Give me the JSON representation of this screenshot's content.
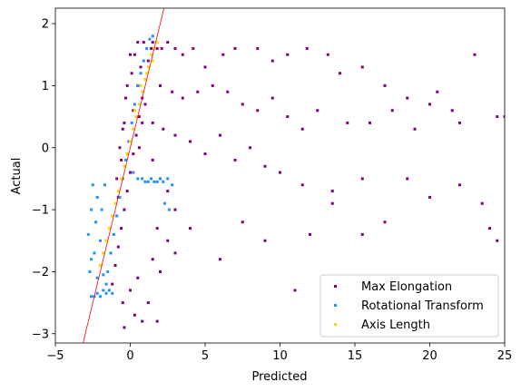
{
  "chart_data": {
    "type": "scatter",
    "xlabel": "Predicted",
    "ylabel": "Actual",
    "xlim": [
      -5,
      25
    ],
    "ylim": [
      -3.15,
      2.25
    ],
    "xticks": [
      -5,
      0,
      5,
      10,
      15,
      20,
      25
    ],
    "yticks": [
      -3,
      -2,
      -1,
      0,
      1,
      2
    ],
    "grid": false,
    "legend_position": "lower right",
    "reference_line": {
      "label": "",
      "slope": 1.0,
      "intercept": 0.0,
      "color": "#ff0000"
    },
    "series": [
      {
        "name": "Max Elongation",
        "color": "#800080",
        "points": [
          [
            -1.2,
            -2.2
          ],
          [
            -1.0,
            -1.9
          ],
          [
            -0.8,
            -1.6
          ],
          [
            -0.6,
            -1.3
          ],
          [
            -0.4,
            -1.0
          ],
          [
            -0.2,
            -0.7
          ],
          [
            0.0,
            -0.4
          ],
          [
            0.2,
            -0.1
          ],
          [
            0.4,
            0.2
          ],
          [
            0.6,
            0.5
          ],
          [
            0.8,
            0.8
          ],
          [
            1.0,
            1.1
          ],
          [
            1.2,
            1.4
          ],
          [
            1.4,
            1.6
          ],
          [
            -0.5,
            0.3
          ],
          [
            -0.3,
            0.8
          ],
          [
            0.1,
            1.2
          ],
          [
            0.3,
            1.5
          ],
          [
            0.5,
            1.7
          ],
          [
            0.9,
            1.7
          ],
          [
            -0.9,
            -0.5
          ],
          [
            -0.7,
            0.0
          ],
          [
            0.2,
            0.6
          ],
          [
            0.5,
            1.0
          ],
          [
            0.7,
            1.3
          ],
          [
            1.5,
            1.7
          ],
          [
            1.8,
            1.6
          ],
          [
            2.1,
            1.6
          ],
          [
            2.5,
            1.7
          ],
          [
            3.0,
            1.6
          ],
          [
            3.5,
            1.5
          ],
          [
            4.2,
            1.6
          ],
          [
            5.0,
            1.3
          ],
          [
            6.2,
            1.5
          ],
          [
            7.0,
            1.6
          ],
          [
            8.5,
            1.6
          ],
          [
            9.5,
            1.4
          ],
          [
            10.5,
            1.5
          ],
          [
            11.8,
            1.6
          ],
          [
            13.2,
            1.5
          ],
          [
            14.0,
            1.2
          ],
          [
            15.5,
            1.3
          ],
          [
            17.0,
            1.0
          ],
          [
            18.5,
            0.8
          ],
          [
            20.0,
            0.7
          ],
          [
            21.5,
            0.6
          ],
          [
            23.0,
            1.5
          ],
          [
            24.5,
            0.5
          ],
          [
            25.0,
            0.5
          ],
          [
            2.0,
            1.0
          ],
          [
            2.8,
            0.9
          ],
          [
            3.5,
            0.8
          ],
          [
            4.5,
            0.9
          ],
          [
            5.5,
            1.0
          ],
          [
            6.5,
            0.9
          ],
          [
            7.5,
            0.7
          ],
          [
            8.5,
            0.6
          ],
          [
            9.5,
            0.8
          ],
          [
            10.5,
            0.5
          ],
          [
            11.5,
            0.3
          ],
          [
            12.5,
            0.6
          ],
          [
            14.5,
            0.4
          ],
          [
            16.0,
            0.4
          ],
          [
            17.5,
            0.6
          ],
          [
            19.0,
            0.3
          ],
          [
            20.5,
            0.9
          ],
          [
            22.0,
            0.4
          ],
          [
            1.5,
            0.4
          ],
          [
            2.2,
            0.3
          ],
          [
            3.0,
            0.2
          ],
          [
            4.0,
            0.1
          ],
          [
            5.0,
            -0.1
          ],
          [
            6.0,
            0.2
          ],
          [
            7.0,
            -0.2
          ],
          [
            8.0,
            0.0
          ],
          [
            9.0,
            -0.3
          ],
          [
            10.0,
            -0.4
          ],
          [
            11.5,
            -0.6
          ],
          [
            13.5,
            -0.7
          ],
          [
            15.5,
            -0.5
          ],
          [
            18.5,
            -0.5
          ],
          [
            20.0,
            -0.8
          ],
          [
            22.0,
            -0.6
          ],
          [
            23.5,
            -0.9
          ],
          [
            24.5,
            -1.5
          ],
          [
            24.0,
            -1.3
          ],
          [
            1.5,
            -0.2
          ],
          [
            2.0,
            -0.5
          ],
          [
            2.5,
            -0.7
          ],
          [
            3.0,
            -1.0
          ],
          [
            1.8,
            -1.3
          ],
          [
            2.5,
            -1.5
          ],
          [
            1.5,
            -1.8
          ],
          [
            2.0,
            -2.0
          ],
          [
            0.5,
            -2.1
          ],
          [
            0.0,
            -2.3
          ],
          [
            -0.5,
            -2.5
          ],
          [
            0.3,
            -2.7
          ],
          [
            -0.4,
            -2.9
          ],
          [
            0.8,
            -2.8
          ],
          [
            1.2,
            -2.5
          ],
          [
            1.8,
            -2.8
          ],
          [
            3.0,
            -1.7
          ],
          [
            4.0,
            -1.3
          ],
          [
            6.0,
            -1.8
          ],
          [
            7.5,
            -1.2
          ],
          [
            9.0,
            -1.5
          ],
          [
            11.0,
            -2.3
          ],
          [
            12.0,
            -1.4
          ],
          [
            13.5,
            -0.9
          ],
          [
            15.5,
            -1.4
          ],
          [
            17.0,
            -1.2
          ],
          [
            -0.8,
            -0.8
          ],
          [
            -0.6,
            -0.2
          ],
          [
            -0.4,
            0.4
          ],
          [
            -0.2,
            1.0
          ],
          [
            0.0,
            1.5
          ],
          [
            0.6,
            0.0
          ],
          [
            0.8,
            0.4
          ],
          [
            1.0,
            0.7
          ]
        ]
      },
      {
        "name": "Rotational Transform",
        "color": "#1e90ff",
        "points": [
          [
            -2.6,
            -2.4
          ],
          [
            -2.4,
            -2.4
          ],
          [
            -2.2,
            -2.35
          ],
          [
            -2.0,
            -2.4
          ],
          [
            -1.8,
            -2.3
          ],
          [
            -1.6,
            -2.2
          ],
          [
            -1.5,
            -2.0
          ],
          [
            -1.3,
            -1.7
          ],
          [
            -1.1,
            -1.4
          ],
          [
            -0.9,
            -1.1
          ],
          [
            -0.7,
            -0.8
          ],
          [
            -0.5,
            -0.5
          ],
          [
            -0.3,
            -0.2
          ],
          [
            -0.1,
            0.1
          ],
          [
            0.1,
            0.4
          ],
          [
            0.3,
            0.7
          ],
          [
            0.5,
            1.0
          ],
          [
            0.7,
            1.2
          ],
          [
            0.9,
            1.4
          ],
          [
            1.1,
            1.6
          ],
          [
            1.3,
            1.75
          ],
          [
            1.5,
            1.8
          ],
          [
            -2.8,
            -1.4
          ],
          [
            -2.6,
            -1.0
          ],
          [
            -2.5,
            -0.6
          ],
          [
            -2.3,
            -1.2
          ],
          [
            -2.2,
            -0.8
          ],
          [
            -2.0,
            -1.5
          ],
          [
            -1.9,
            -1.0
          ],
          [
            -1.7,
            -0.6
          ],
          [
            -2.4,
            -1.7
          ],
          [
            -2.6,
            -1.8
          ],
          [
            -2.7,
            -2.0
          ],
          [
            -2.2,
            -2.1
          ],
          [
            0.5,
            -0.5
          ],
          [
            0.8,
            -0.5
          ],
          [
            1.0,
            -0.55
          ],
          [
            1.2,
            -0.55
          ],
          [
            1.4,
            -0.5
          ],
          [
            1.6,
            -0.55
          ],
          [
            1.8,
            -0.55
          ],
          [
            2.0,
            -0.5
          ],
          [
            2.2,
            -0.55
          ],
          [
            2.5,
            -0.5
          ],
          [
            2.8,
            -0.6
          ],
          [
            2.3,
            -0.9
          ],
          [
            2.6,
            -1.0
          ],
          [
            0.2,
            -0.4
          ],
          [
            -1.4,
            -2.3
          ],
          [
            -1.2,
            -2.35
          ],
          [
            -1.6,
            -2.35
          ],
          [
            -1.8,
            -2.05
          ]
        ]
      },
      {
        "name": "Axis Length",
        "color": "#ffd700",
        "points": [
          [
            -2.0,
            -1.9
          ],
          [
            -1.8,
            -1.7
          ],
          [
            -1.6,
            -1.5
          ],
          [
            -1.4,
            -1.3
          ],
          [
            -1.2,
            -1.1
          ],
          [
            -1.0,
            -0.9
          ],
          [
            -0.8,
            -0.7
          ],
          [
            -0.6,
            -0.5
          ],
          [
            -0.4,
            -0.3
          ],
          [
            -0.2,
            -0.1
          ],
          [
            0.0,
            0.1
          ],
          [
            0.2,
            0.3
          ],
          [
            0.4,
            0.5
          ],
          [
            0.6,
            0.7
          ],
          [
            0.8,
            0.9
          ],
          [
            1.0,
            1.1
          ],
          [
            1.2,
            1.3
          ],
          [
            1.4,
            1.5
          ],
          [
            1.6,
            1.6
          ],
          [
            1.8,
            1.7
          ],
          [
            0.3,
            0.6
          ],
          [
            0.7,
            1.0
          ],
          [
            1.1,
            1.2
          ],
          [
            1.5,
            1.4
          ]
        ]
      }
    ]
  }
}
